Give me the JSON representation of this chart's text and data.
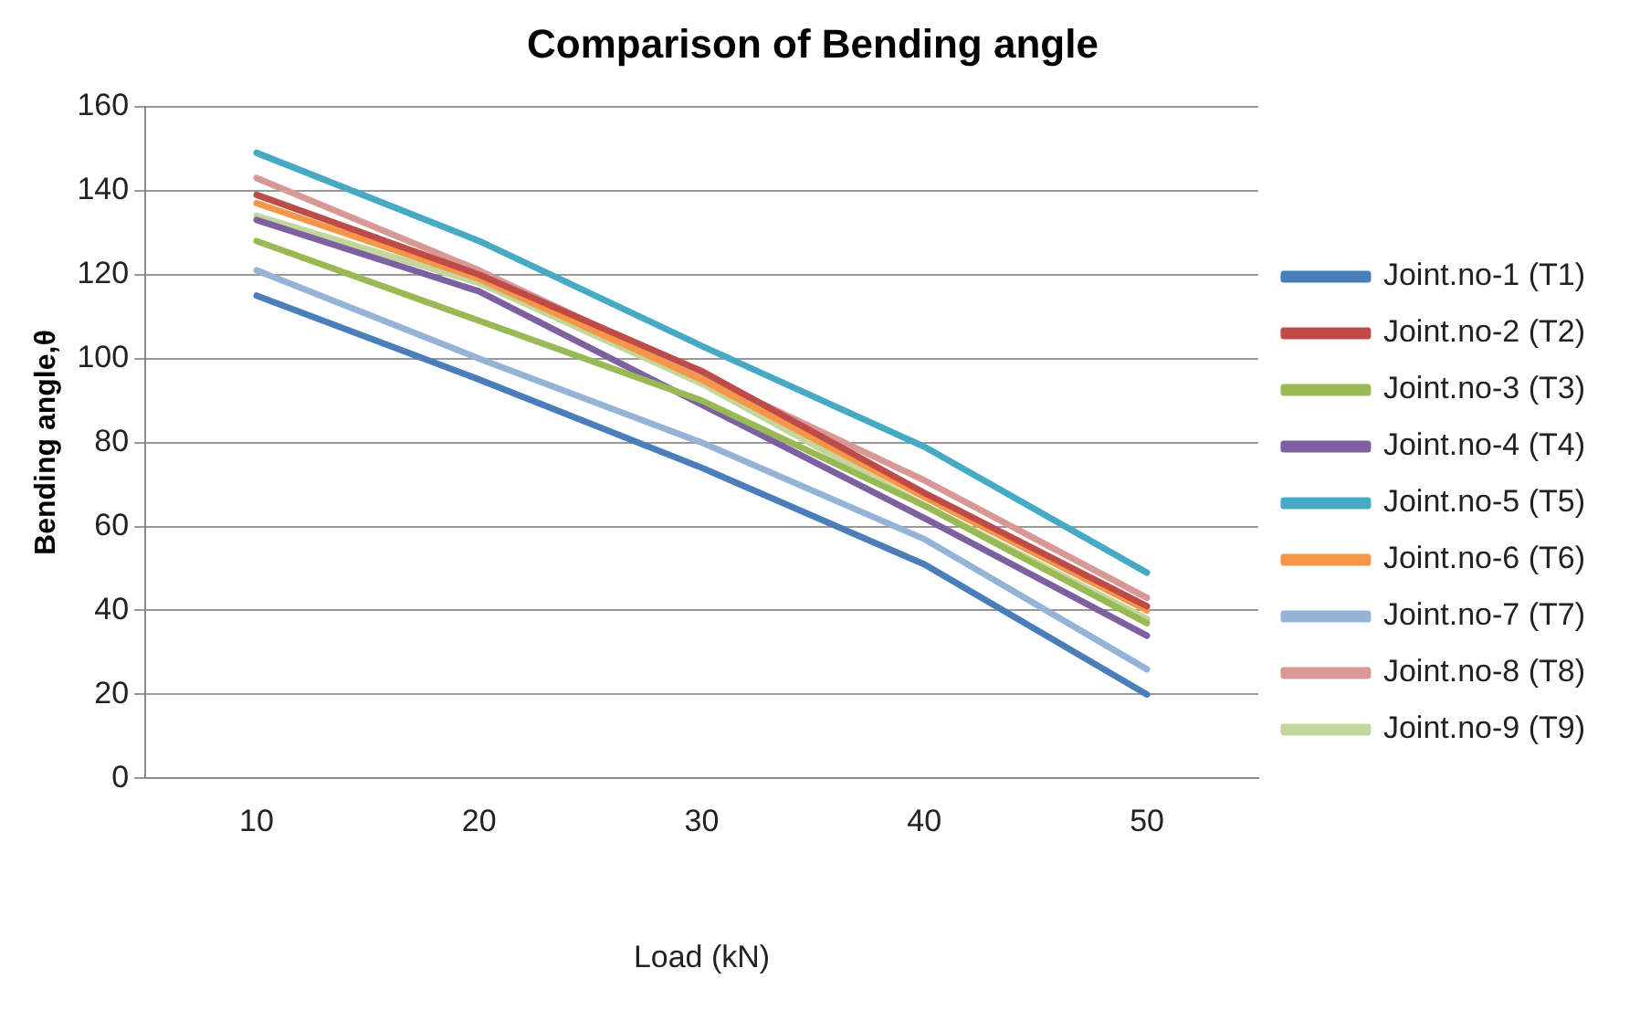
{
  "chart_data": {
    "type": "line",
    "title": "Comparison of Bending angle",
    "xlabel": "Load (kN)",
    "ylabel": "Bending angle,θ",
    "categories": [
      "10",
      "20",
      "30",
      "40",
      "50"
    ],
    "ylim": [
      0,
      160
    ],
    "yticks": [
      0,
      20,
      40,
      60,
      80,
      100,
      120,
      140,
      160
    ],
    "grid": "y",
    "legend": "right",
    "marker": "none",
    "line_style": "solid",
    "series": [
      {
        "name": "Joint.no-1 (T1)",
        "color": "#4a7ebb",
        "values": [
          115,
          95,
          74,
          51,
          20
        ]
      },
      {
        "name": "Joint.no-2 (T2)",
        "color": "#be4b48",
        "values": [
          139,
          120,
          97,
          68,
          41
        ]
      },
      {
        "name": "Joint.no-3 (T3)",
        "color": "#98b954",
        "values": [
          128,
          109,
          90,
          65,
          37
        ]
      },
      {
        "name": "Joint.no-4 (T4)",
        "color": "#7d60a0",
        "values": [
          133,
          116,
          89,
          62,
          34
        ]
      },
      {
        "name": "Joint.no-5 (T5)",
        "color": "#46aac5",
        "values": [
          149,
          128,
          103,
          79,
          49
        ]
      },
      {
        "name": "Joint.no-6 (T6)",
        "color": "#f79646",
        "values": [
          137,
          119,
          95,
          67,
          40
        ]
      },
      {
        "name": "Joint.no-7 (T7)",
        "color": "#95b3d7",
        "values": [
          121,
          100,
          80,
          57,
          26
        ]
      },
      {
        "name": "Joint.no-8 (T8)",
        "color": "#d99795",
        "values": [
          143,
          121,
          96,
          71,
          43
        ]
      },
      {
        "name": "Joint.no-9 (T9)",
        "color": "#c3d69b",
        "values": [
          134,
          118,
          94,
          65,
          38
        ]
      }
    ]
  }
}
